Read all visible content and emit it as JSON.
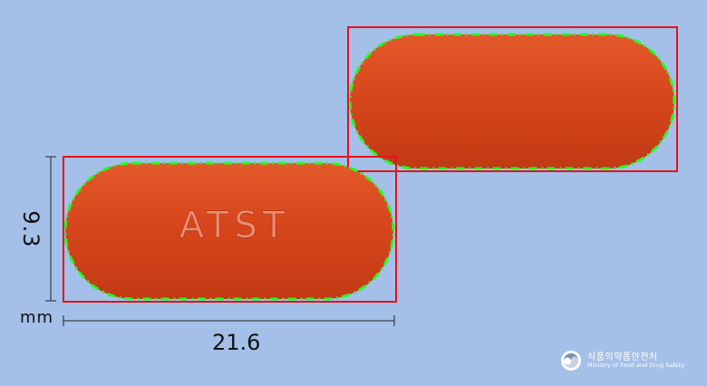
{
  "pill": {
    "imprint": "ATST",
    "color": "#d7461c"
  },
  "dimensions": {
    "height": "9.3",
    "width": "21.6",
    "unit": "mm"
  },
  "logo": {
    "korean": "식품의약품안전처",
    "english": "Ministry of Food and Drug Safety"
  },
  "colors": {
    "background": "#a4c0e8",
    "bounding_box": "#e8101a",
    "contour": "#22ff22"
  }
}
